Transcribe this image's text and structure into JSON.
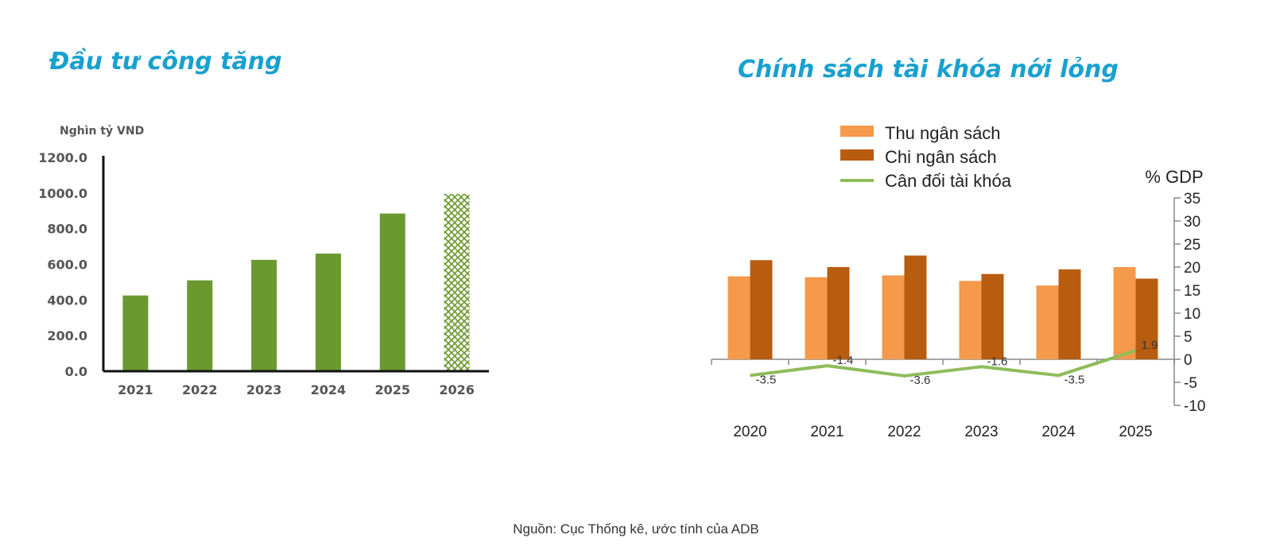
{
  "charts": {
    "left_title": "Đầu tư công tăng",
    "right_title": "Chính sách tài khóa nới lỏng",
    "source": "Nguồn: Cục Thống kê, ước tính của ADB"
  },
  "chart_data": [
    {
      "type": "bar",
      "title": "Đầu tư công tăng",
      "ylabel": "Nghìn tỷ VND",
      "categories": [
        "2021",
        "2022",
        "2023",
        "2024",
        "2025",
        "2026"
      ],
      "values": [
        425,
        510,
        625,
        660,
        885,
        995
      ],
      "ylim": [
        0,
        1200
      ],
      "yticks": [
        "0.0",
        "200.0",
        "400.0",
        "600.0",
        "800.0",
        "1000.0",
        "1200.0"
      ],
      "colors": [
        "#6a992f",
        "#6a992f",
        "#6a992f",
        "#6a992f",
        "#6a992f",
        "#6a992f"
      ],
      "notes": "2026 bar hatched"
    },
    {
      "type": "bar",
      "title": "Chính sách tài khóa nới lỏng",
      "ylabel": "% GDP",
      "categories": [
        "2020",
        "2021",
        "2022",
        "2023",
        "2024",
        "2025"
      ],
      "ylim": [
        -10,
        35
      ],
      "yticks": [
        "35",
        "30",
        "25",
        "20",
        "15",
        "10",
        "5",
        "0",
        "-5",
        "-10"
      ],
      "series": [
        {
          "name": "Thu ngân sách",
          "type": "bar",
          "color": "#f5994b",
          "values": [
            18.0,
            17.8,
            18.2,
            17.0,
            16.0,
            20.0
          ]
        },
        {
          "name": "Chi ngân sách",
          "type": "bar",
          "color": "#b85c10",
          "values": [
            21.5,
            20.0,
            22.5,
            18.5,
            19.5,
            17.5
          ]
        },
        {
          "name": "Cân đối tài khóa",
          "type": "line",
          "color": "#8dbd5a",
          "values": [
            -3.5,
            -1.4,
            -3.6,
            -1.6,
            -3.5,
            1.9
          ],
          "labels": [
            "-3.5",
            "-1.4",
            "-3.6",
            "-1.6",
            "-3.5",
            "1.9"
          ]
        }
      ]
    }
  ]
}
